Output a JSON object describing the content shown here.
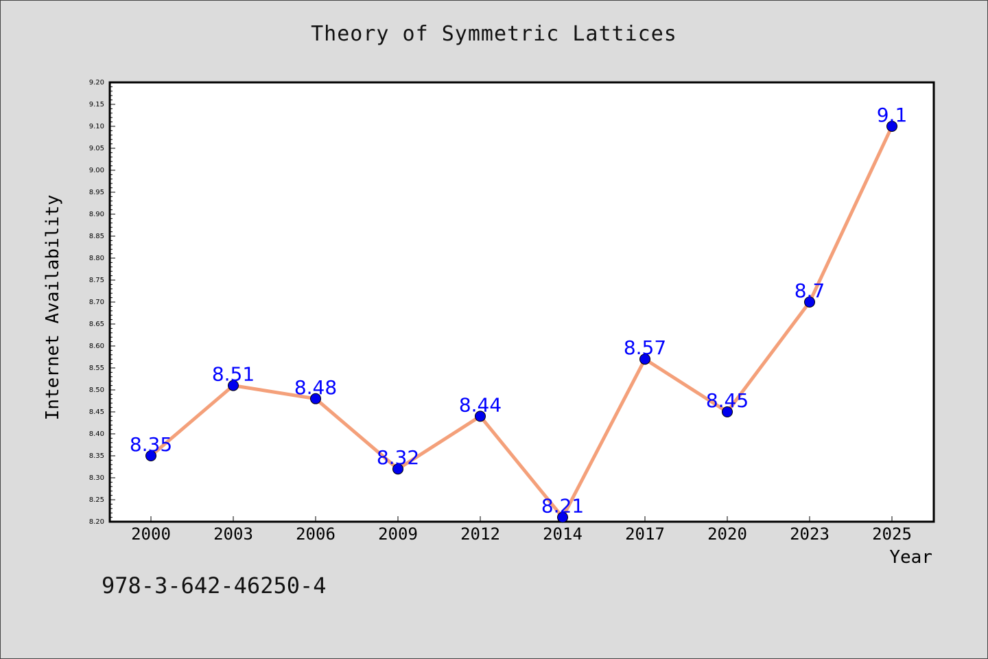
{
  "page": {
    "footer_text": "978-3-642-46250-4"
  },
  "colors": {
    "background": "#dcdcdc",
    "plot_background": "#ffffff",
    "line": "#f4a07a",
    "marker": "#0000ee",
    "data_label": "#0000ff"
  },
  "chart_data": {
    "type": "line",
    "title": "Theory of Symmetric Lattices",
    "xlabel": "Year",
    "ylabel": "Internet Availability",
    "categories": [
      "2000",
      "2003",
      "2006",
      "2009",
      "2012",
      "2014",
      "2017",
      "2020",
      "2023",
      "2025"
    ],
    "series": [
      {
        "values": [
          8.35,
          8.51,
          8.48,
          8.32,
          8.44,
          8.21,
          8.57,
          8.45,
          8.7,
          9.1
        ],
        "labels": [
          "8.35",
          "8.51",
          "8.48",
          "8.32",
          "8.44",
          "8.21",
          "8.57",
          "8.45",
          "8.7",
          "9.1"
        ]
      }
    ],
    "ylim": [
      8.2,
      9.2
    ],
    "yticks": [
      "8.20",
      "8.25",
      "8.30",
      "8.35",
      "8.40",
      "8.45",
      "8.50",
      "8.55",
      "8.60",
      "8.65",
      "8.70",
      "8.75",
      "8.80",
      "8.85",
      "8.90",
      "8.95",
      "9.00",
      "9.05",
      "9.10",
      "9.15",
      "9.20"
    ],
    "grid": false,
    "legend": "none"
  }
}
